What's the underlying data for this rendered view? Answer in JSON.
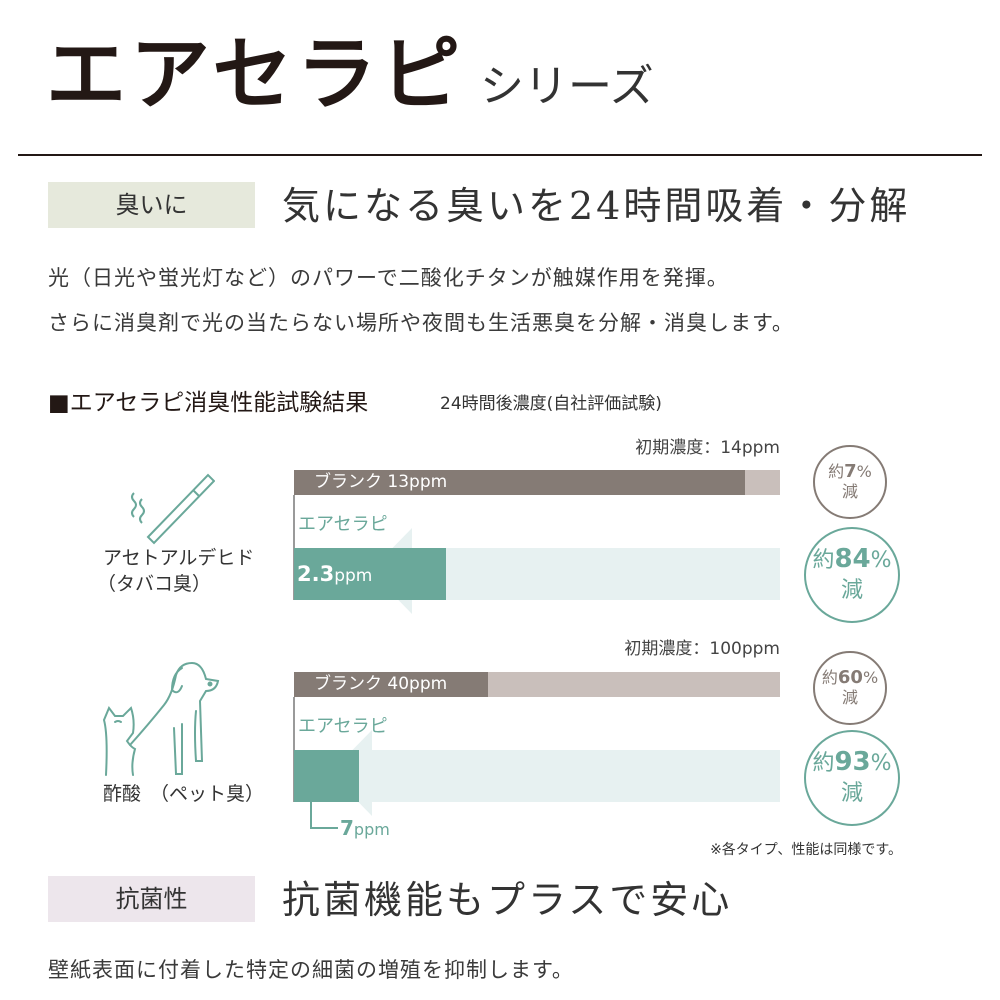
{
  "header": {
    "title": "エアセラピ",
    "series": "シリーズ"
  },
  "deodorize": {
    "tag": "臭いに",
    "heading": "気になる臭いを24時間吸着・分解",
    "lines": [
      "光（日光や蛍光灯など）のパワーで二酸化チタンが触媒作用を発揮。",
      "さらに消臭剤で光の当たらない場所や夜間も生活悪臭を分解・消臭します。"
    ]
  },
  "test": {
    "heading": "■エアセラピ消臭性能試験結果",
    "subheading": "24時間後濃度(自社評価試験)",
    "note": "※各タイプ、性能は同様です。"
  },
  "chart_data": [
    {
      "type": "bar",
      "gas": "アセトアルデヒド",
      "gas_note": "（タバコ臭）",
      "icon": "cigarette-icon",
      "initial_label": "初期濃度：14ppm",
      "initial": 14,
      "blank_label": "ブランク 13ppm",
      "blank": 13,
      "product_name": "エアセラピ",
      "product_label_num": "2.3",
      "product_label_unit": "ppm",
      "product": 2.3,
      "blank_reduction": {
        "pre": "約",
        "value": "7",
        "unit": "%",
        "post": "減"
      },
      "product_reduction": {
        "pre": "約",
        "value": "84",
        "unit": "%",
        "post": "減"
      }
    },
    {
      "type": "bar",
      "gas": "酢酸",
      "gas_note": "（ペット臭）",
      "icon": "cat-dog-icon",
      "initial_label": "初期濃度：100ppm",
      "initial": 100,
      "blank_label": "ブランク 40ppm",
      "blank": 40,
      "product_name": "エアセラピ",
      "product_label_num": "7",
      "product_label_unit": "ppm",
      "product": 7,
      "blank_reduction": {
        "pre": "約",
        "value": "60",
        "unit": "%",
        "post": "減"
      },
      "product_reduction": {
        "pre": "約",
        "value": "93",
        "unit": "%",
        "post": "減"
      }
    }
  ],
  "antibacterial": {
    "tag": "抗菌性",
    "heading": "抗菌機能もプラスで安心",
    "line": "壁紙表面に付着した特定の細菌の増殖を抑制します。"
  },
  "colors": {
    "blank": "#857b75",
    "blank_bg": "#c9bfbb",
    "product": "#6aa89a",
    "arrow": "#e7f1f1",
    "tag1": "#e6e9dc",
    "tag2": "#ede6ec"
  }
}
